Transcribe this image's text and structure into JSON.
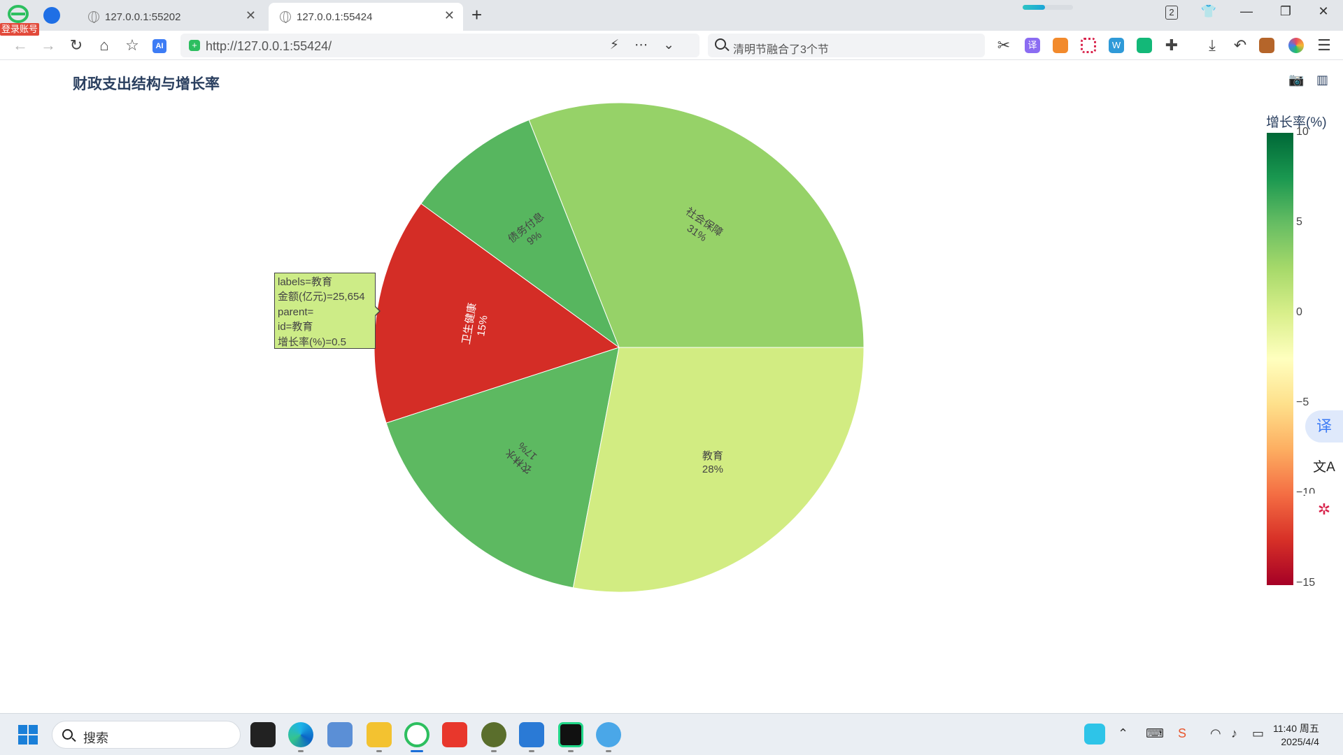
{
  "browser": {
    "login_badge": "登录账号",
    "tabs": [
      {
        "title": "127.0.0.1:55202",
        "active": false
      },
      {
        "title": "127.0.0.1:55424",
        "active": true
      }
    ],
    "new_tab": "+",
    "download_progress": 0.45,
    "tab_count": "2",
    "url": "http://127.0.0.1:55424/",
    "search_suggestion": "清明节融合了3个节",
    "ai_badge": "AI",
    "translate_ext": "译",
    "wps_ext": "W"
  },
  "page": {
    "title": "财政支出结构与增长率"
  },
  "chart_data": {
    "type": "pie",
    "title": "财政支出结构与增长率",
    "slices": [
      {
        "label": "社会保障",
        "percent": 31,
        "growth": 3.4,
        "color": "#96d268"
      },
      {
        "label": "债务付息",
        "percent": 9,
        "growth": 6.8,
        "color": "#57b65f"
      },
      {
        "label": "卫生健康",
        "percent": 15,
        "growth": -12.3,
        "color": "#d42d26"
      },
      {
        "label": "农林水",
        "percent": 17,
        "growth": 5.9,
        "color": "#5db961"
      },
      {
        "label": "教育",
        "percent": 28,
        "growth": 0.5,
        "color": "#d2ec82"
      }
    ],
    "colorbar": {
      "title": "增长率(%)",
      "ticks": [
        "10",
        "5",
        "0",
        "−5",
        "−10",
        "−15"
      ],
      "range": [
        -15,
        10
      ],
      "colorscale": "RdYlGn"
    },
    "hover": {
      "line1": "labels=教育",
      "line2": "金额(亿元)=25,654",
      "line3": "parent=",
      "line4": "id=教育",
      "line5": "增长率(%)=0.5"
    }
  },
  "float_buttons": {
    "translate": "译",
    "translate2": "文A"
  },
  "taskbar": {
    "search_label": "搜索",
    "time": "11:40 周五",
    "date": "2025/4/4"
  }
}
